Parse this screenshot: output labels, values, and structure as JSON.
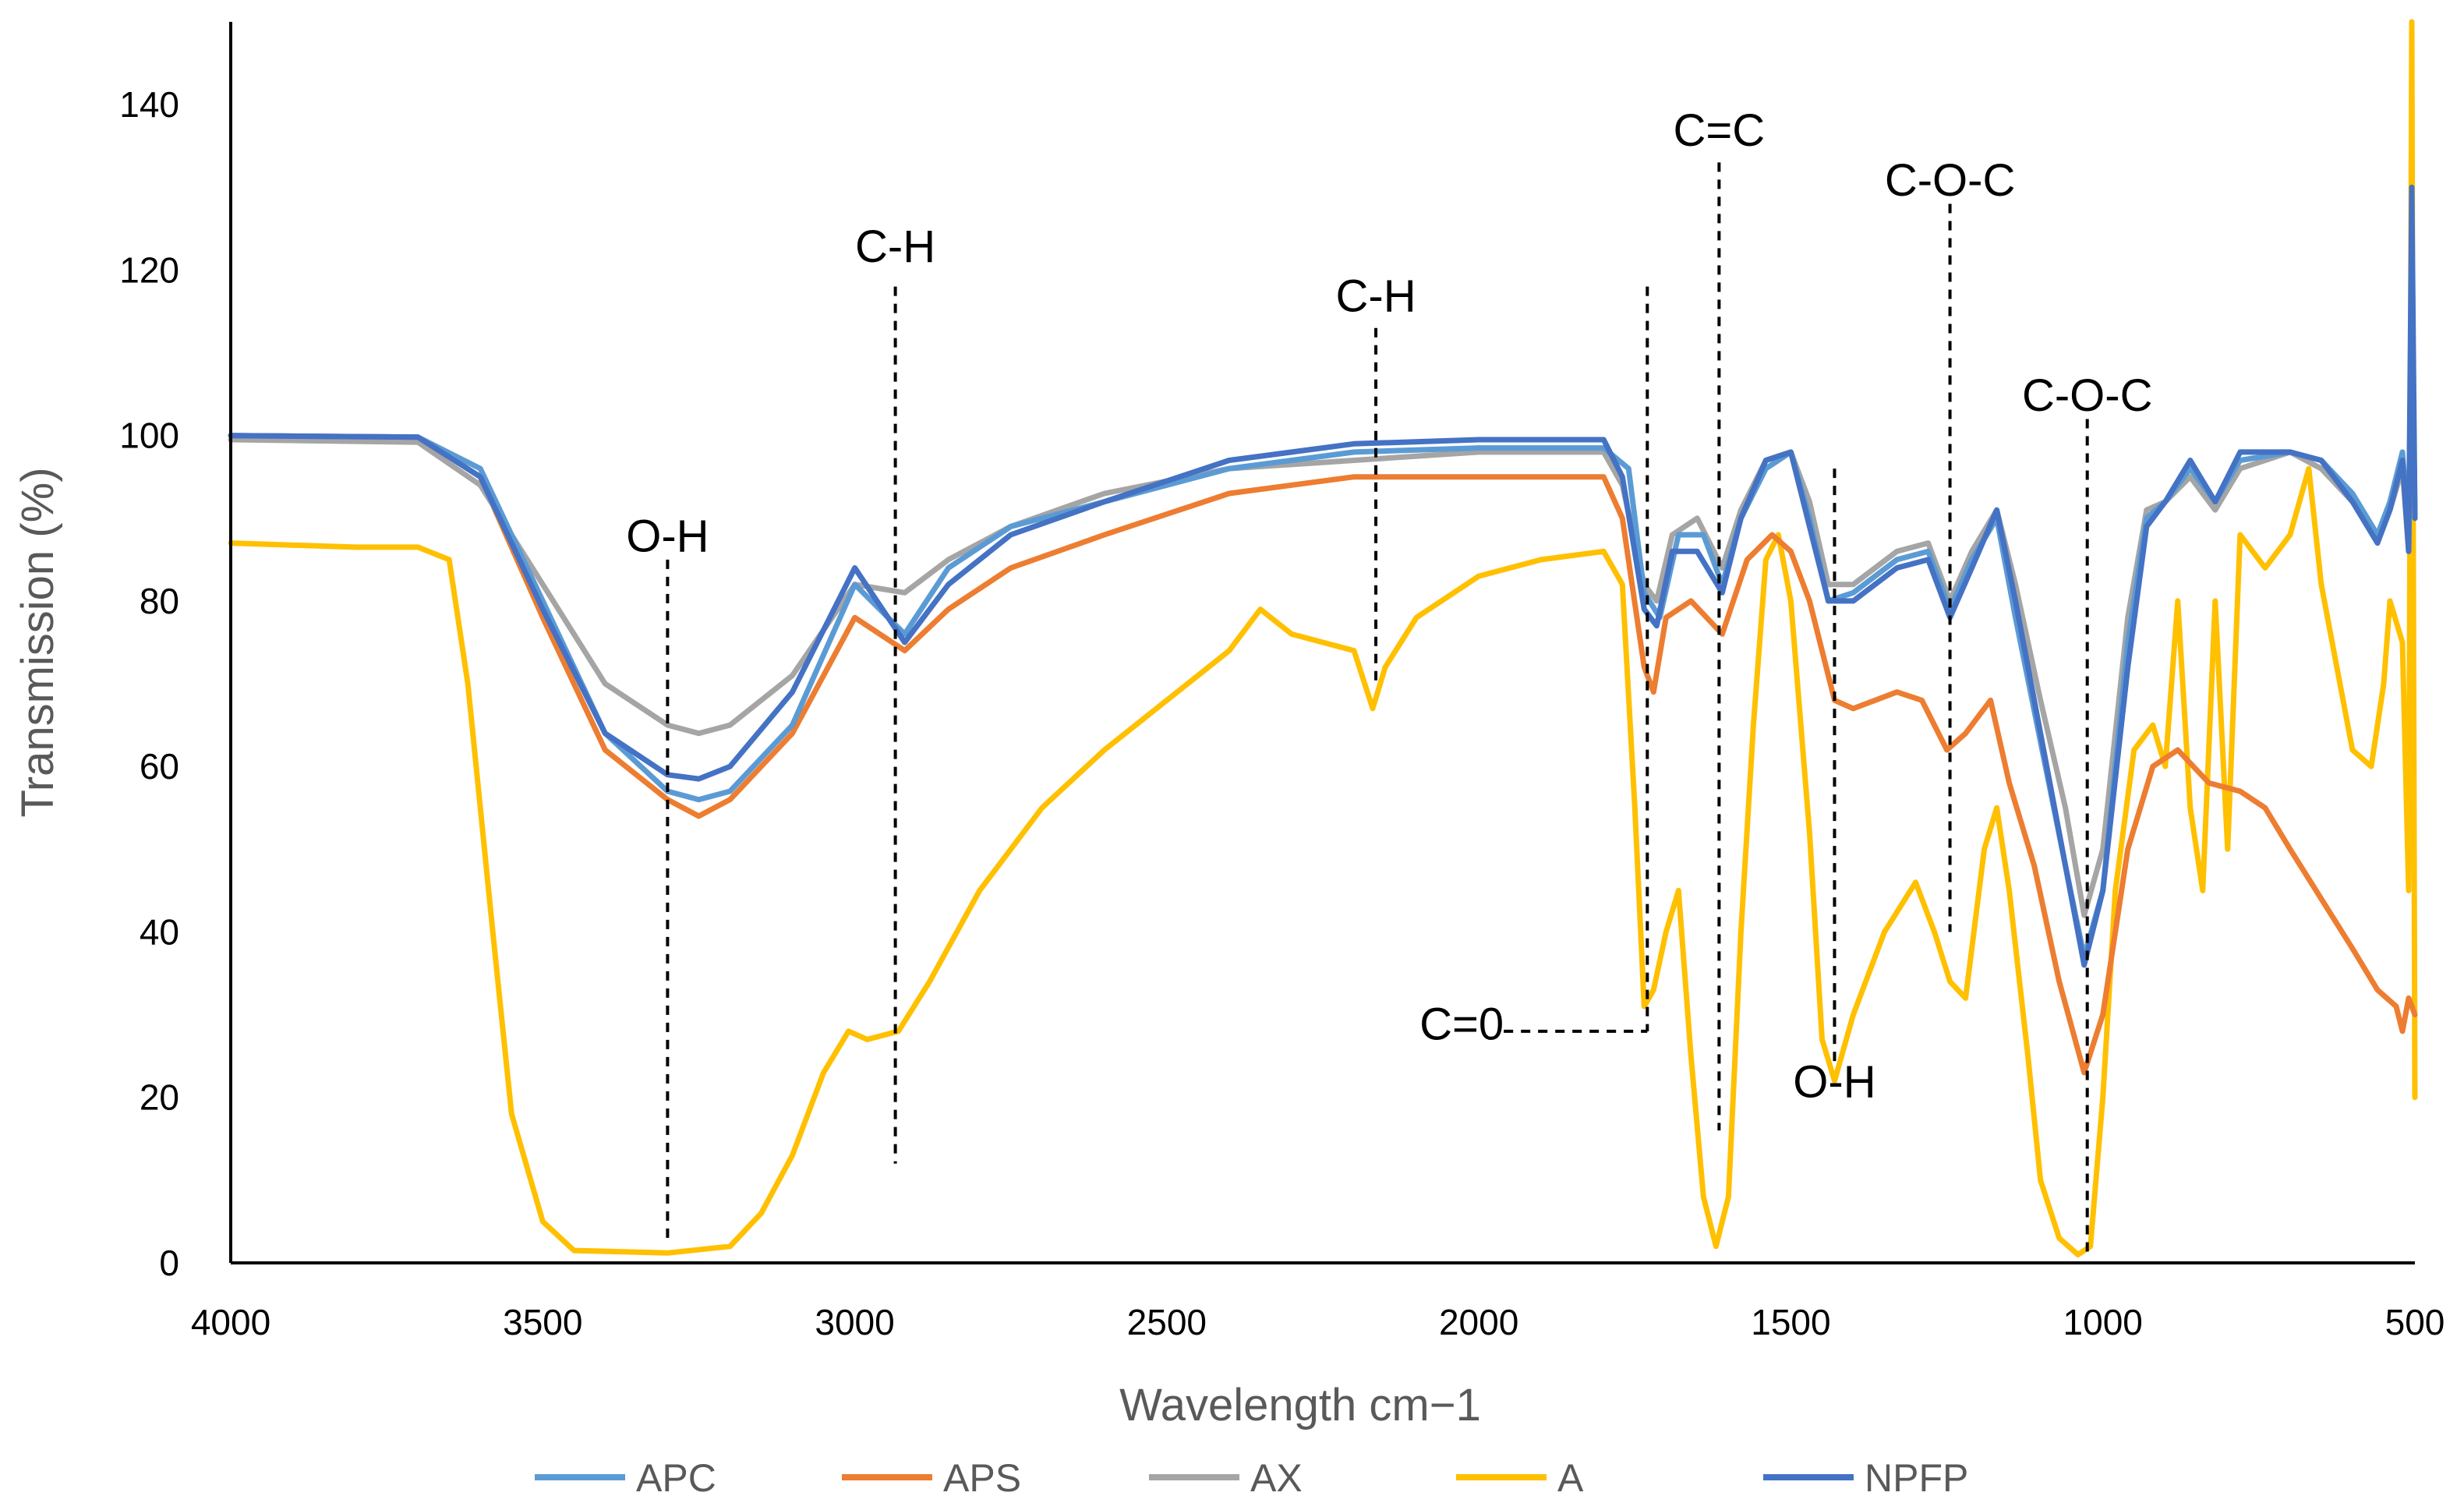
{
  "chart_data": {
    "type": "line",
    "title": "",
    "xlabel": "Wavelength cm−1",
    "ylabel": "Transmission (%)",
    "xlim": [
      4000,
      500
    ],
    "ylim": [
      0,
      150
    ],
    "x_ticks": [
      "4000",
      "3500",
      "3000",
      "2500",
      "2000",
      "1500",
      "1000",
      "500"
    ],
    "y_ticks": [
      "0",
      "20",
      "40",
      "60",
      "80",
      "100",
      "120",
      "140"
    ],
    "legend_position": "bottom",
    "series": [
      {
        "name": "APC",
        "color": "#5B9BD5",
        "points": [
          [
            4000,
            100
          ],
          [
            3700,
            99.8
          ],
          [
            3600,
            96
          ],
          [
            3500,
            80
          ],
          [
            3400,
            64
          ],
          [
            3300,
            57
          ],
          [
            3250,
            56
          ],
          [
            3200,
            57
          ],
          [
            3100,
            65
          ],
          [
            3000,
            82
          ],
          [
            2920,
            76
          ],
          [
            2850,
            84
          ],
          [
            2750,
            89
          ],
          [
            2600,
            92
          ],
          [
            2400,
            96
          ],
          [
            2200,
            98
          ],
          [
            2000,
            98.5
          ],
          [
            1800,
            98.5
          ],
          [
            1760,
            96
          ],
          [
            1735,
            81
          ],
          [
            1710,
            78
          ],
          [
            1680,
            88
          ],
          [
            1640,
            88
          ],
          [
            1610,
            82
          ],
          [
            1580,
            90
          ],
          [
            1540,
            96
          ],
          [
            1500,
            98
          ],
          [
            1470,
            90
          ],
          [
            1440,
            80
          ],
          [
            1400,
            81
          ],
          [
            1330,
            85
          ],
          [
            1280,
            86
          ],
          [
            1245,
            79
          ],
          [
            1210,
            85
          ],
          [
            1170,
            90
          ],
          [
            1140,
            78
          ],
          [
            1100,
            63
          ],
          [
            1060,
            48
          ],
          [
            1030,
            37
          ],
          [
            1000,
            45
          ],
          [
            960,
            75
          ],
          [
            930,
            90
          ],
          [
            900,
            92
          ],
          [
            860,
            96
          ],
          [
            820,
            92
          ],
          [
            780,
            97
          ],
          [
            700,
            98
          ],
          [
            650,
            97
          ],
          [
            600,
            93
          ],
          [
            560,
            88
          ],
          [
            540,
            92
          ],
          [
            520,
            98
          ],
          [
            510,
            88
          ],
          [
            505,
            120
          ],
          [
            500,
            90
          ]
        ]
      },
      {
        "name": "APS",
        "color": "#ED7D31",
        "points": [
          [
            4000,
            100
          ],
          [
            3700,
            99.8
          ],
          [
            3600,
            95
          ],
          [
            3500,
            78
          ],
          [
            3400,
            62
          ],
          [
            3300,
            56
          ],
          [
            3250,
            54
          ],
          [
            3200,
            56
          ],
          [
            3100,
            64
          ],
          [
            3000,
            78
          ],
          [
            2920,
            74
          ],
          [
            2850,
            79
          ],
          [
            2750,
            84
          ],
          [
            2600,
            88
          ],
          [
            2400,
            93
          ],
          [
            2200,
            95
          ],
          [
            2000,
            95
          ],
          [
            1800,
            95
          ],
          [
            1770,
            90
          ],
          [
            1735,
            72
          ],
          [
            1720,
            69
          ],
          [
            1700,
            78
          ],
          [
            1660,
            80
          ],
          [
            1610,
            76
          ],
          [
            1570,
            85
          ],
          [
            1530,
            88
          ],
          [
            1500,
            86
          ],
          [
            1470,
            80
          ],
          [
            1430,
            68
          ],
          [
            1400,
            67
          ],
          [
            1330,
            69
          ],
          [
            1290,
            68
          ],
          [
            1250,
            62
          ],
          [
            1220,
            64
          ],
          [
            1180,
            68
          ],
          [
            1150,
            58
          ],
          [
            1110,
            48
          ],
          [
            1070,
            34
          ],
          [
            1030,
            23
          ],
          [
            1000,
            30
          ],
          [
            960,
            50
          ],
          [
            920,
            60
          ],
          [
            880,
            62
          ],
          [
            830,
            58
          ],
          [
            780,
            57
          ],
          [
            740,
            55
          ],
          [
            700,
            50
          ],
          [
            650,
            44
          ],
          [
            600,
            38
          ],
          [
            560,
            33
          ],
          [
            530,
            31
          ],
          [
            520,
            28
          ],
          [
            510,
            32
          ],
          [
            500,
            30
          ]
        ]
      },
      {
        "name": "AX",
        "color": "#A5A5A5",
        "points": [
          [
            4000,
            99.5
          ],
          [
            3700,
            99.2
          ],
          [
            3600,
            94
          ],
          [
            3500,
            82
          ],
          [
            3400,
            70
          ],
          [
            3300,
            65
          ],
          [
            3250,
            64
          ],
          [
            3200,
            65
          ],
          [
            3100,
            71
          ],
          [
            3000,
            82
          ],
          [
            2920,
            81
          ],
          [
            2850,
            85
          ],
          [
            2750,
            89
          ],
          [
            2600,
            93
          ],
          [
            2400,
            96
          ],
          [
            2200,
            97
          ],
          [
            2000,
            98
          ],
          [
            1800,
            98
          ],
          [
            1770,
            94
          ],
          [
            1735,
            82
          ],
          [
            1715,
            80
          ],
          [
            1690,
            88
          ],
          [
            1650,
            90
          ],
          [
            1610,
            84
          ],
          [
            1580,
            91
          ],
          [
            1540,
            97
          ],
          [
            1500,
            98
          ],
          [
            1470,
            92
          ],
          [
            1440,
            82
          ],
          [
            1400,
            82
          ],
          [
            1330,
            86
          ],
          [
            1280,
            87
          ],
          [
            1245,
            80
          ],
          [
            1210,
            86
          ],
          [
            1170,
            91
          ],
          [
            1140,
            82
          ],
          [
            1100,
            68
          ],
          [
            1060,
            55
          ],
          [
            1030,
            42
          ],
          [
            1000,
            50
          ],
          [
            960,
            78
          ],
          [
            930,
            91
          ],
          [
            900,
            92
          ],
          [
            860,
            95
          ],
          [
            820,
            91
          ],
          [
            780,
            96
          ],
          [
            700,
            98
          ],
          [
            650,
            96
          ],
          [
            600,
            92
          ],
          [
            560,
            88
          ],
          [
            540,
            91
          ],
          [
            520,
            96
          ],
          [
            510,
            86
          ],
          [
            505,
            115
          ],
          [
            500,
            90
          ]
        ]
      },
      {
        "name": "A",
        "color": "#FFC000",
        "points": [
          [
            4000,
            87
          ],
          [
            3800,
            86.5
          ],
          [
            3700,
            86.5
          ],
          [
            3650,
            85
          ],
          [
            3620,
            70
          ],
          [
            3580,
            40
          ],
          [
            3550,
            18
          ],
          [
            3500,
            5
          ],
          [
            3450,
            1.5
          ],
          [
            3300,
            1.2
          ],
          [
            3200,
            2
          ],
          [
            3150,
            6
          ],
          [
            3100,
            13
          ],
          [
            3050,
            23
          ],
          [
            3010,
            28
          ],
          [
            2980,
            27
          ],
          [
            2930,
            28
          ],
          [
            2880,
            34
          ],
          [
            2800,
            45
          ],
          [
            2700,
            55
          ],
          [
            2600,
            62
          ],
          [
            2500,
            68
          ],
          [
            2400,
            74
          ],
          [
            2350,
            79
          ],
          [
            2300,
            76
          ],
          [
            2200,
            74
          ],
          [
            2170,
            67
          ],
          [
            2150,
            72
          ],
          [
            2100,
            78
          ],
          [
            2000,
            83
          ],
          [
            1900,
            85
          ],
          [
            1800,
            86
          ],
          [
            1770,
            82
          ],
          [
            1750,
            55
          ],
          [
            1735,
            31
          ],
          [
            1720,
            33
          ],
          [
            1700,
            40
          ],
          [
            1680,
            45
          ],
          [
            1660,
            25
          ],
          [
            1640,
            8
          ],
          [
            1620,
            2
          ],
          [
            1600,
            8
          ],
          [
            1580,
            40
          ],
          [
            1560,
            65
          ],
          [
            1540,
            85
          ],
          [
            1520,
            88
          ],
          [
            1500,
            80
          ],
          [
            1470,
            52
          ],
          [
            1450,
            27
          ],
          [
            1430,
            22
          ],
          [
            1400,
            30
          ],
          [
            1350,
            40
          ],
          [
            1300,
            46
          ],
          [
            1270,
            40
          ],
          [
            1245,
            34
          ],
          [
            1220,
            32
          ],
          [
            1190,
            50
          ],
          [
            1170,
            55
          ],
          [
            1150,
            45
          ],
          [
            1120,
            25
          ],
          [
            1100,
            10
          ],
          [
            1070,
            3
          ],
          [
            1040,
            1
          ],
          [
            1020,
            2
          ],
          [
            1000,
            20
          ],
          [
            980,
            45
          ],
          [
            950,
            62
          ],
          [
            920,
            65
          ],
          [
            900,
            60
          ],
          [
            880,
            80
          ],
          [
            860,
            55
          ],
          [
            840,
            45
          ],
          [
            820,
            80
          ],
          [
            800,
            50
          ],
          [
            780,
            88
          ],
          [
            740,
            84
          ],
          [
            700,
            88
          ],
          [
            670,
            96
          ],
          [
            650,
            82
          ],
          [
            620,
            70
          ],
          [
            600,
            62
          ],
          [
            570,
            60
          ],
          [
            550,
            70
          ],
          [
            540,
            80
          ],
          [
            520,
            75
          ],
          [
            510,
            45
          ],
          [
            505,
            150
          ],
          [
            500,
            20
          ]
        ]
      },
      {
        "name": "NPFP",
        "color": "#4472C4",
        "points": [
          [
            4000,
            100
          ],
          [
            3700,
            99.8
          ],
          [
            3600,
            95
          ],
          [
            3500,
            79
          ],
          [
            3400,
            64
          ],
          [
            3300,
            59
          ],
          [
            3250,
            58.5
          ],
          [
            3200,
            60
          ],
          [
            3100,
            69
          ],
          [
            3000,
            84
          ],
          [
            2920,
            75
          ],
          [
            2850,
            82
          ],
          [
            2750,
            88
          ],
          [
            2600,
            92
          ],
          [
            2400,
            97
          ],
          [
            2200,
            99
          ],
          [
            2000,
            99.5
          ],
          [
            1800,
            99.5
          ],
          [
            1770,
            95
          ],
          [
            1735,
            79
          ],
          [
            1715,
            77
          ],
          [
            1690,
            86
          ],
          [
            1650,
            86
          ],
          [
            1610,
            81
          ],
          [
            1580,
            90
          ],
          [
            1540,
            97
          ],
          [
            1500,
            98
          ],
          [
            1470,
            89
          ],
          [
            1440,
            80
          ],
          [
            1400,
            80
          ],
          [
            1330,
            84
          ],
          [
            1280,
            85
          ],
          [
            1245,
            78
          ],
          [
            1210,
            84
          ],
          [
            1170,
            91
          ],
          [
            1140,
            80
          ],
          [
            1100,
            64
          ],
          [
            1060,
            48
          ],
          [
            1030,
            36
          ],
          [
            1000,
            45
          ],
          [
            960,
            72
          ],
          [
            930,
            89
          ],
          [
            900,
            92
          ],
          [
            860,
            97
          ],
          [
            820,
            92
          ],
          [
            780,
            98
          ],
          [
            700,
            98
          ],
          [
            650,
            97
          ],
          [
            600,
            92
          ],
          [
            560,
            87
          ],
          [
            540,
            91
          ],
          [
            520,
            97
          ],
          [
            510,
            86
          ],
          [
            505,
            130
          ],
          [
            500,
            90
          ]
        ]
      }
    ],
    "annotations": [
      {
        "text": "O-H",
        "x": 3300,
        "line_from": 85,
        "line_to": 3,
        "label_y": 86
      },
      {
        "text": "C-H",
        "x": 2935,
        "line_from": 118,
        "line_to": 12,
        "label_y": 121
      },
      {
        "text": "C-H",
        "x": 2165,
        "line_from": 113,
        "line_to": 70,
        "label_y": 115
      },
      {
        "text": "C=C",
        "x": 1615,
        "line_from": 133,
        "line_to": 16,
        "label_y": 135
      },
      {
        "text": "C-O-C",
        "x": 1245,
        "line_from": 128,
        "line_to": 40,
        "label_y": 129
      },
      {
        "text": "C-O-C",
        "x": 1025,
        "line_from": 102,
        "line_to": 1,
        "label_y": 103
      },
      {
        "text": "O-H",
        "x": 1430,
        "line_from": 96,
        "line_to": 24,
        "label_y": 20
      },
      {
        "text": "C=0",
        "x": 1730,
        "line_from": 118,
        "line_to": 28,
        "label_y": 27
      }
    ]
  }
}
